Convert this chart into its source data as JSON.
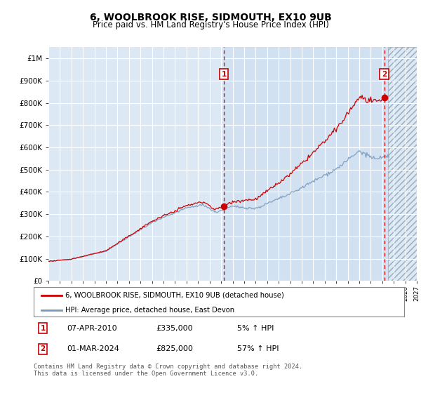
{
  "title": "6, WOOLBROOK RISE, SIDMOUTH, EX10 9UB",
  "subtitle": "Price paid vs. HM Land Registry's House Price Index (HPI)",
  "legend_line1": "6, WOOLBROOK RISE, SIDMOUTH, EX10 9UB (detached house)",
  "legend_line2": "HPI: Average price, detached house, East Devon",
  "transaction1_date": "07-APR-2010",
  "transaction1_price": "£335,000",
  "transaction1_pct": "5% ↑ HPI",
  "transaction2_date": "01-MAR-2024",
  "transaction2_price": "£825,000",
  "transaction2_pct": "57% ↑ HPI",
  "footer": "Contains HM Land Registry data © Crown copyright and database right 2024.\nThis data is licensed under the Open Government Licence v3.0.",
  "ylim": [
    0,
    1050000
  ],
  "yticks": [
    0,
    100000,
    200000,
    300000,
    400000,
    500000,
    600000,
    700000,
    800000,
    900000,
    1000000
  ],
  "xmin": 1995,
  "xmax": 2027,
  "transaction1_year": 2010.25,
  "transaction1_value": 335000,
  "transaction2_year": 2024.17,
  "transaction2_value": 825000,
  "hatch_start": 2024.5,
  "plot_bg": "#dce9f5",
  "plot_bg_highlighted": "#ccdcef",
  "line_color_red": "#cc0000",
  "line_color_blue": "#7799bb",
  "grid_color": "#ffffff",
  "marker_box_color": "#cc0000",
  "noise_seed": 42
}
